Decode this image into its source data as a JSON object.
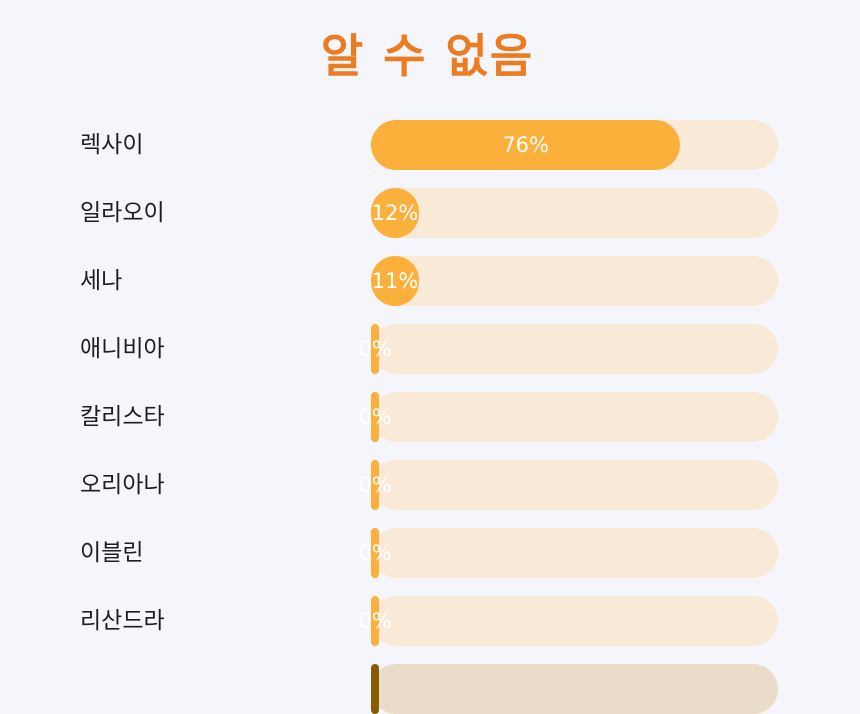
{
  "title": "알 수 없음",
  "rows": [
    {
      "name": "렉사이",
      "value": 76,
      "label": "76%"
    },
    {
      "name": "일라오이",
      "value": 12,
      "label": "12%"
    },
    {
      "name": "세나",
      "value": 11,
      "label": "11%"
    },
    {
      "name": "애니비아",
      "value": 0,
      "label": "0%"
    },
    {
      "name": "칼리스타",
      "value": 0,
      "label": "0%"
    },
    {
      "name": "오리아나",
      "value": 0,
      "label": "0%"
    },
    {
      "name": "이블린",
      "value": 0,
      "label": "0%"
    },
    {
      "name": "리산드라",
      "value": 0,
      "label": "0%"
    }
  ],
  "colors": {
    "title": "#ec7c22",
    "fill": "#fbb03b",
    "track": "#f9ead7",
    "background": "#f4f6fb"
  }
}
